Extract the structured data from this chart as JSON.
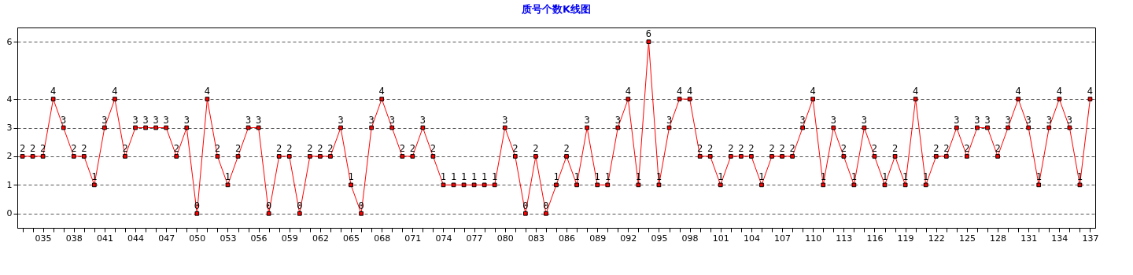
{
  "chart_data": {
    "type": "line",
    "title": "质号个数K线图",
    "categories": [
      null,
      null,
      "035",
      null,
      null,
      "038",
      null,
      null,
      "041",
      null,
      null,
      "044",
      null,
      null,
      "047",
      null,
      null,
      "050",
      null,
      null,
      "053",
      null,
      null,
      "056",
      null,
      null,
      "059",
      null,
      null,
      "062",
      null,
      null,
      "065",
      null,
      null,
      "068",
      null,
      null,
      "071",
      null,
      null,
      "074",
      null,
      null,
      "077",
      null,
      null,
      "080",
      null,
      null,
      "083",
      null,
      null,
      "086",
      null,
      null,
      "089",
      null,
      null,
      "092",
      null,
      null,
      "095",
      null,
      null,
      "098",
      null,
      null,
      "101",
      null,
      null,
      "104",
      null,
      null,
      "107",
      null,
      null,
      "110",
      null,
      null,
      "113",
      null,
      null,
      "116",
      null,
      null,
      "119",
      null,
      null,
      "122",
      null,
      null,
      "125",
      null,
      null,
      "128",
      null,
      null,
      "131",
      null,
      null,
      "134",
      null,
      null,
      "137"
    ],
    "series": [
      {
        "color": "#ff0000",
        "values": [
          2,
          2,
          2,
          4,
          3,
          2,
          2,
          1,
          3,
          4,
          2,
          3,
          3,
          3,
          3,
          2,
          3,
          0,
          4,
          2,
          1,
          2,
          3,
          3,
          0,
          2,
          2,
          0,
          2,
          2,
          2,
          3,
          1,
          0,
          3,
          4,
          3,
          2,
          2,
          3,
          2,
          1,
          1,
          1,
          1,
          1,
          1,
          3,
          2,
          0,
          2,
          0,
          1,
          2,
          1,
          3,
          1,
          1,
          3,
          4,
          1,
          6,
          1,
          3,
          4,
          4,
          2,
          2,
          1,
          2,
          2,
          2,
          1,
          2,
          2,
          2,
          3,
          4,
          1,
          3,
          2,
          1,
          3,
          2,
          1,
          2,
          1,
          4,
          1,
          2,
          2,
          3,
          2,
          3,
          3,
          2,
          3,
          4,
          3,
          1,
          3,
          4,
          3,
          1,
          4
        ]
      }
    ],
    "ylim": [
      -0.5,
      6.5
    ],
    "yticks": [
      0,
      1,
      2,
      3,
      4,
      6
    ],
    "grid": "y",
    "marker": "square",
    "line_style": "solid",
    "data_labels": true,
    "legend": false
  }
}
